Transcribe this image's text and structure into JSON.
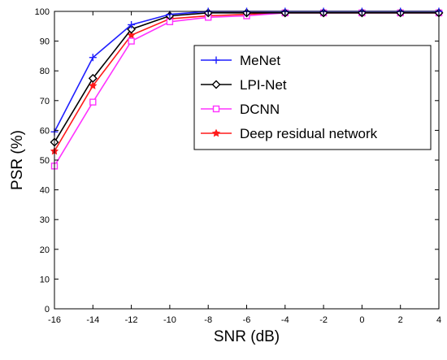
{
  "chart_data": {
    "type": "line",
    "xlabel": "SNR (dB)",
    "ylabel": "PSR (%)",
    "xlim": [
      -16,
      4
    ],
    "ylim": [
      0,
      100
    ],
    "xticks": [
      -16,
      -14,
      -12,
      -10,
      -8,
      -6,
      -4,
      -2,
      0,
      2,
      4
    ],
    "yticks": [
      0,
      10,
      20,
      30,
      40,
      50,
      60,
      70,
      80,
      90,
      100
    ],
    "grid": false,
    "legend_position": "right",
    "x": [
      -16,
      -14,
      -12,
      -10,
      -8,
      -6,
      -4,
      -2,
      0,
      2,
      4
    ],
    "series": [
      {
        "name": "MeNet",
        "color": "#1f1fff",
        "marker": "plus",
        "values": [
          59.5,
          84.5,
          95.5,
          99,
          100,
          100,
          100,
          100,
          100,
          100,
          100
        ]
      },
      {
        "name": "LPI-Net",
        "color": "#000000",
        "marker": "diamond",
        "values": [
          56,
          77.5,
          94,
          98.5,
          99.5,
          99.5,
          99.5,
          99.5,
          99.5,
          99.5,
          99.5
        ]
      },
      {
        "name": "DCNN",
        "color": "#ff33ff",
        "marker": "square",
        "values": [
          48,
          69.5,
          90,
          96.5,
          98,
          98.5,
          99.5,
          99.5,
          99.5,
          99.5,
          99.5
        ]
      },
      {
        "name": "Deep residual network",
        "color": "#ff1a1a",
        "marker": "star",
        "values": [
          53,
          75,
          92,
          97.5,
          98.5,
          99,
          99.5,
          99.5,
          99.5,
          99.5,
          99.5
        ]
      }
    ]
  }
}
